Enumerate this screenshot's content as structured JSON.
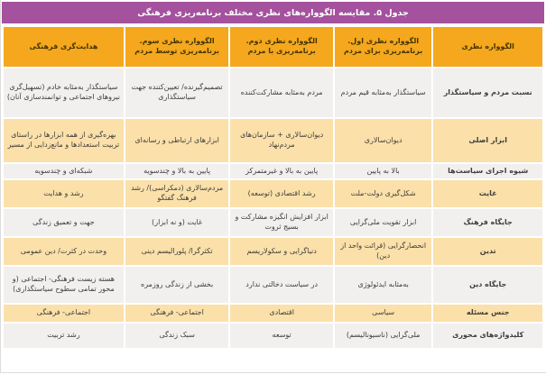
{
  "title": "جدول ۵. مقایسه الگوواره‌های نظری مختلف برنامه‌ریزی فرهنگی",
  "colors": {
    "title_bar": "#a4519e",
    "title_text": "#ffffff",
    "header_bg": "#f5a71d",
    "row_gray": "#f1f0ef",
    "row_cream": "#fbe0a9",
    "text": "#3e3e3e"
  },
  "table": {
    "direction": "rtl",
    "columns": [
      "الگوواره نظری",
      "الگوواره نظری اول. برنامه‌ریزی برای مردم",
      "الگوواره نظری دوم. برنامه‌ریزی با مردم",
      "الگوواره نظری سوم. برنامه‌ریزی توسط مردم",
      "هدایت‌گری فرهنگی"
    ],
    "rows": [
      {
        "label": "نسبت مردم و سیاستگذار",
        "cells": [
          "سیاستگذار به‌مثابه قیم مردم",
          "مردم به‌مثابه مشارکت‌کننده",
          "تصمیم‌گیرنده/ تعیین‌کننده جهت سیاستگذاری",
          "سیاستگذار به‌مثابه خادم (تسهیل‌گری نیروهای اجتماعی و توانمندسازی آنان)"
        ]
      },
      {
        "label": "ابزار اصلی",
        "cells": [
          "دیوان‌سالاری",
          "دیوان‌سالاری + سازمان‌های مردم‌نهاد",
          "ابزارهای ارتباطی و رسانه‌ای",
          "بهره‌گیری از همه ابزارها در راستای تربیت استعدادها و مانع‌زدایی از مسیر"
        ]
      },
      {
        "label": "شیوه اجرای سیاست‌ها",
        "cells": [
          "بالا به پایین",
          "پایین به بالا و غیرمتمرکز",
          "پایین به بالا و چندسویه",
          "شبکه‌ای و چندسویه"
        ]
      },
      {
        "label": "غایت",
        "cells": [
          "شکل‌گیری دولت-ملت",
          "رشد اقتصادی (توسعه)",
          "مردم‌سالاری (دمکراسی)/ رشد فرهنگ گفتگو",
          "رشد و هدایت"
        ]
      },
      {
        "label": "جایگاه فرهنگ",
        "cells": [
          "ابزار تقویت ملی‌گرایی",
          "ابزار افزایش انگیزه مشارکت و بسیج ثروت",
          "غایت (و نه ابزار)",
          "جهت و تعمیق زندگی"
        ]
      },
      {
        "label": "تدین",
        "cells": [
          "انحصارگرایی (قرائت واحد از دین)",
          "دنیاگرایی و سکولاریسم",
          "تکثرگرا/ پلورالیسم دینی",
          "وحدت در کثرت/ دین عمومی"
        ]
      },
      {
        "label": "جایگاه دین",
        "cells": [
          "به‌مثابه ایدئولوژی",
          "در سیاست دخالتی ندارد",
          "بخشی از زندگی روزمره",
          "هسته زیست فرهنگی- اجتماعی (و محور تمامی سطوح سیاستگذاری)"
        ]
      },
      {
        "label": "جنس مسئله",
        "cells": [
          "سیاسی",
          "اقتصادی",
          "اجتماعی- فرهنگی",
          "اجتماعی- فرهنگی"
        ]
      },
      {
        "label": "کلیدواژه‌های محوری",
        "cells": [
          "ملی‌گرایی (ناسیونالیسم)",
          "توسعه",
          "سبک زندگی",
          "رشد تربیت"
        ]
      }
    ]
  }
}
